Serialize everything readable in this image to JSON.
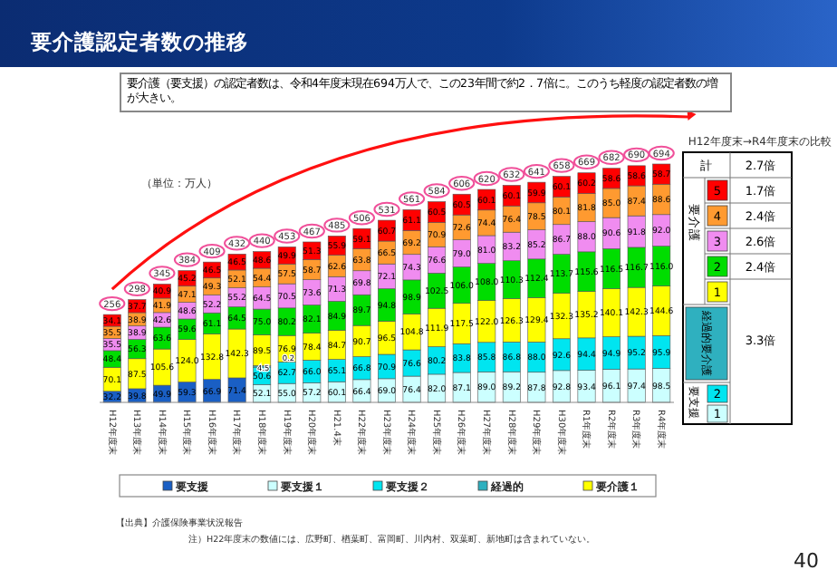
{
  "chart_data": {
    "type": "bar",
    "stacked": true,
    "title": "要介護認定者数の推移",
    "subtitle": "要介護（要支援）の認定者数は、令和4年度末現在694万人で、この23年間で約2．7倍に。このうち軽度の認定者数の増が大きい。",
    "ylabel": "（単位：万人）",
    "categories": [
      "H12年度末",
      "H13年度末",
      "H14年度末",
      "H15年度末",
      "H16年度末",
      "H17年度末",
      "H18年度末",
      "H19年度末",
      "H20年度末",
      "H21.4末",
      "H22年度末",
      "H23年度末",
      "H24年度末",
      "H25年度末",
      "H26年度末",
      "H27年度末",
      "H28年度末",
      "H29年度末",
      "H30年度末",
      "R1年度末",
      "R2年度末",
      "R3年度末",
      "R4年度末"
    ],
    "tick_labels": "x",
    "legend": "bottom",
    "series": [
      {
        "name": "要支援",
        "color": "#1a5fc4",
        "values": [
          32.2,
          39.8,
          49.9,
          59.3,
          66.9,
          71.4,
          null,
          null,
          null,
          null,
          null,
          null,
          null,
          null,
          null,
          null,
          null,
          null,
          null,
          null,
          null,
          null,
          null
        ],
        "value_labels": [
          "32.2",
          "39.8",
          "49.9",
          "59.3",
          "66.9",
          "71.4",
          null,
          null,
          null,
          null,
          null,
          null,
          null,
          null,
          null,
          null,
          null,
          null,
          null,
          null,
          null,
          null,
          null
        ]
      },
      {
        "name": "要支援１",
        "color": "#ccffff",
        "values": [
          null,
          null,
          null,
          null,
          null,
          null,
          52.1,
          55.0,
          57.2,
          60.1,
          66.4,
          69.0,
          76.4,
          82.0,
          87.1,
          89.0,
          89.2,
          87.8,
          92.8,
          93.4,
          96.1,
          97.4,
          98.5
        ],
        "value_labels": [
          null,
          null,
          null,
          null,
          null,
          null,
          "52.1",
          "55.0",
          "57.2",
          "60.1",
          "66.4",
          "69.0",
          "76.4",
          "82.0",
          "87.1",
          "89.0",
          "89.2",
          "87.8",
          "92.8",
          "93.4",
          "96.1",
          "97.4",
          "98.5"
        ]
      },
      {
        "name": "要支援２",
        "color": "#00e5f0",
        "values": [
          null,
          null,
          null,
          null,
          null,
          null,
          50.6,
          62.7,
          66.0,
          65.1,
          66.8,
          70.9,
          76.6,
          80.2,
          83.8,
          85.8,
          86.8,
          88.0,
          92.6,
          94.4,
          94.9,
          95.2,
          95.9
        ],
        "value_labels": [
          null,
          null,
          null,
          null,
          null,
          null,
          "50.6",
          "62.7",
          "66.0",
          "65.1",
          "66.8",
          "70.9",
          "76.6",
          "80.2",
          "83.8",
          "85.8",
          "86.8",
          "88.0",
          "92.6",
          "94.4",
          "94.9",
          "95.2",
          "95.9"
        ]
      },
      {
        "name": "経過的",
        "color": "#2fb0bf",
        "values": [
          null,
          null,
          null,
          null,
          null,
          null,
          4.5,
          0.2,
          null,
          null,
          null,
          null,
          null,
          null,
          null,
          null,
          null,
          null,
          null,
          null,
          null,
          null,
          null
        ],
        "value_labels": [
          null,
          null,
          null,
          null,
          null,
          null,
          "4.5",
          "0.2",
          null,
          null,
          null,
          null,
          null,
          null,
          null,
          null,
          null,
          null,
          null,
          null,
          null,
          null,
          null
        ]
      },
      {
        "name": "要介護１",
        "color": "#ffff00",
        "values": [
          70.1,
          87.5,
          105.6,
          124.0,
          132.8,
          142.3,
          89.5,
          76.9,
          78.4,
          84.7,
          90.7,
          96.5,
          104.8,
          111.9,
          117.5,
          122.0,
          126.3,
          129.4,
          132.3,
          135.2,
          140.1,
          142.3,
          144.6
        ],
        "value_labels": [
          "70.1",
          "87.5",
          "105.6",
          "124.0",
          "132.8",
          "142.3",
          "89.5",
          "76.9",
          "78.4",
          "84.7",
          "90.7",
          "96.5",
          "104.8",
          "111.9",
          "117.5",
          "122.0",
          "126.3",
          "129.4",
          "132.3",
          "135.2",
          "140.1",
          "142.3",
          "144.6"
        ]
      },
      {
        "color": "#00dd00",
        "values": [
          48.4,
          56.3,
          63.6,
          59.6,
          61.1,
          64.5,
          75.0,
          80.2,
          82.1,
          84.9,
          89.7,
          94.8,
          98.9,
          102.5,
          106.0,
          108.0,
          110.3,
          112.4,
          113.7,
          115.6,
          116.5,
          116.7,
          116.0
        ],
        "value_labels": [
          "48.4",
          "56.3",
          "63.6",
          "59.6",
          "61.1",
          "64.5",
          "75.0",
          "80.2",
          "82.1",
          "84.9",
          "89.7",
          "94.8",
          "98.9",
          "102.5",
          "106.0",
          "108.0",
          "110.3",
          "112.4",
          "113.7",
          "115.6",
          "116.5",
          "116.7",
          "116.0"
        ]
      },
      {
        "color": "#f08cf0",
        "values": [
          35.5,
          38.9,
          42.6,
          48.6,
          52.2,
          55.2,
          64.5,
          70.5,
          73.6,
          71.3,
          69.8,
          72.1,
          74.3,
          76.6,
          79.0,
          81.0,
          83.2,
          85.2,
          86.7,
          88.0,
          90.6,
          91.8,
          92.0
        ],
        "value_labels": [
          "35.5",
          "38.9",
          "42.6",
          "48.6",
          "52.2",
          "55.2",
          "64.5",
          "70.5",
          "73.6",
          "71.3",
          "69.8",
          "72.1",
          "74.3",
          "76.6",
          "79.0",
          "81.0",
          "83.2",
          "85.2",
          "86.7",
          "88.0",
          "90.6",
          "91.8",
          "92.0"
        ]
      },
      {
        "color": "#ff9a30",
        "values": [
          35.5,
          38.9,
          41.9,
          47.1,
          49.3,
          52.1,
          54.4,
          57.5,
          58.7,
          62.6,
          63.8,
          66.5,
          69.2,
          70.9,
          72.6,
          74.4,
          76.4,
          78.5,
          80.1,
          81.8,
          85.0,
          87.4,
          88.6
        ],
        "value_labels": [
          "35.5",
          "38.9",
          "41.9",
          "47.1",
          "49.3",
          "52.1",
          "54.4",
          "57.5",
          "58.7",
          "62.6",
          "63.8",
          "66.5",
          "69.2",
          "70.9",
          "72.6",
          "74.4",
          "76.4",
          "78.5",
          "80.1",
          "81.8",
          "85.0",
          "87.4",
          "88.6"
        ]
      },
      {
        "color": "#ff0000",
        "values": [
          34.1,
          37.7,
          40.9,
          45.2,
          46.5,
          46.5,
          48.6,
          49.9,
          51.3,
          55.9,
          59.1,
          60.7,
          61.1,
          60.5,
          60.5,
          60.1,
          60.1,
          59.9,
          60.1,
          60.2,
          58.6,
          58.6,
          58.7
        ],
        "value_labels": [
          "34.1",
          "37.7",
          "40.9",
          "45.2",
          "46.5",
          "46.5",
          "48.6",
          "49.9",
          "51.3",
          "55.9",
          "59.1",
          "60.7",
          "61.1",
          "60.5",
          "60.5",
          "60.1",
          "60.1",
          "59.9",
          "60.1",
          "60.2",
          "58.6",
          "58.6",
          "58.7"
        ]
      }
    ],
    "totals": [
      "256",
      "298",
      "345",
      "384",
      "409",
      "432",
      "440",
      "453",
      "467",
      "485",
      "506",
      "531",
      "561",
      "584",
      "606",
      "620",
      "632",
      "641",
      "658",
      "669",
      "682",
      "690",
      "694"
    ],
    "annotations": [
      "【出典】介護保険事業状況報告",
      "注）H22年度末の数値には、広野町、楢葉町、富岡町、川内村、双葉町、新地町は含まれていない。",
      "40",
      "H12年度末→R4年度末の比較",
      "計",
      "2.7倍",
      "要介護",
      "5",
      "1.7倍",
      "4",
      "2.4倍",
      "3",
      "2.6倍",
      "2",
      "2.4倍",
      "1",
      "経過的要介護",
      "要支援",
      "2",
      "1",
      "3.3倍"
    ]
  }
}
